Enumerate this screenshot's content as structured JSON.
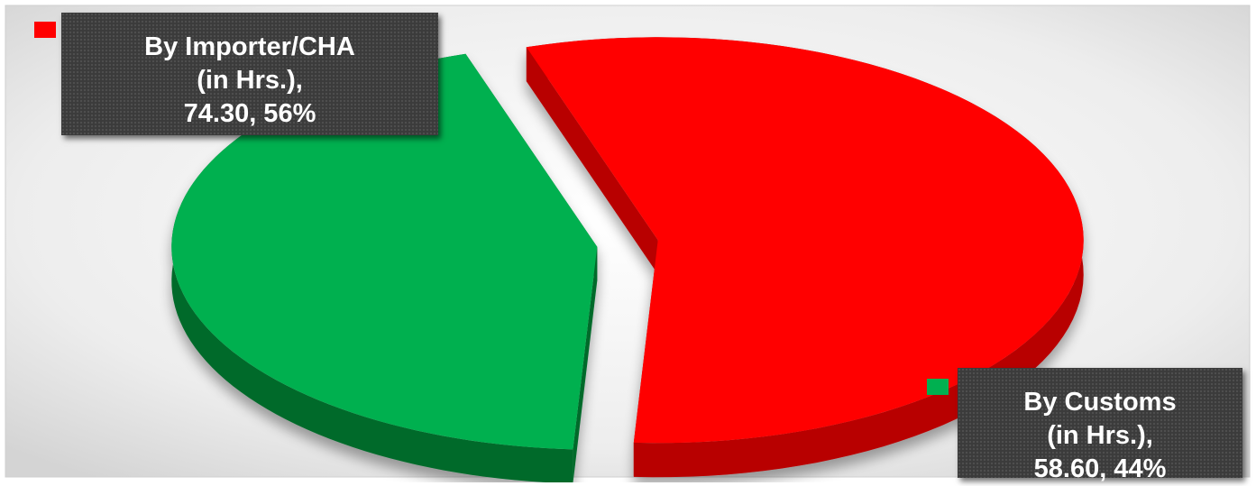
{
  "chart_data": {
    "type": "pie",
    "style": "3d-exploded",
    "slices": [
      {
        "name": "By Importer/CHA (in Hrs.)",
        "label_lines": [
          "By Importer/CHA",
          "(in Hrs.),",
          "74.30, 56%"
        ],
        "value": 74.3,
        "percent": 56,
        "color": "#ff0000",
        "side_color": "#b80000"
      },
      {
        "name": "By Customs (in Hrs.)",
        "label_lines": [
          "By Customs",
          "(in Hrs.),",
          "58.60, 44%"
        ],
        "value": 58.6,
        "percent": 44,
        "color": "#00b050",
        "side_color": "#006b2c"
      }
    ],
    "legend": "none",
    "label_style": "dark callout boxes with legend keys"
  }
}
